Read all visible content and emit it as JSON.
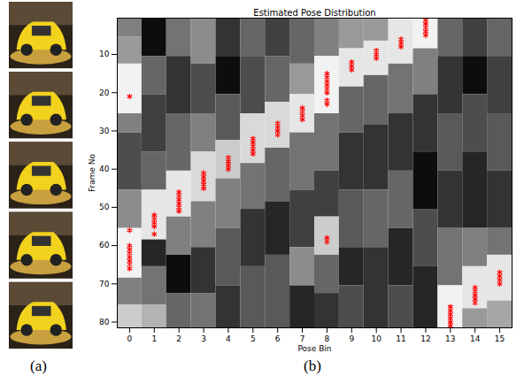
{
  "panel_a": {
    "label": "(a)",
    "images": 5
  },
  "chart_data": {
    "type": "heatmap",
    "panel_label": "(b)",
    "title": "Estimated Pose Distribution",
    "x_label": "Pose Bin",
    "y_label": "Frame No",
    "xlim": [
      -0.5,
      15.5
    ],
    "xticks": [
      0,
      1,
      2,
      3,
      4,
      5,
      6,
      7,
      8,
      9,
      10,
      11,
      12,
      13,
      14,
      15
    ],
    "ylim": [
      0.5,
      81.5
    ],
    "yticks": [
      10,
      20,
      30,
      40,
      50,
      60,
      70,
      80
    ],
    "heatmap": {
      "value_range": [
        0,
        1
      ],
      "pose_bins": [
        0,
        1,
        2,
        3,
        4,
        5,
        6,
        7,
        8,
        9,
        10,
        11,
        12,
        13,
        14,
        15
      ],
      "bands": [
        [
          [
            0.5,
            5.5,
            0.5
          ],
          [
            5.5,
            12.5,
            0.6
          ],
          [
            12.5,
            25.5,
            0.95
          ],
          [
            25.5,
            30.5,
            0.5
          ],
          [
            30.5,
            45.5,
            0.3
          ],
          [
            45.5,
            55.5,
            0.55
          ],
          [
            55.5,
            68.5,
            0.95
          ],
          [
            68.5,
            75.5,
            0.5
          ],
          [
            75.5,
            81.5,
            0.8
          ]
        ],
        [
          [
            0.5,
            10.5,
            0.05
          ],
          [
            10.5,
            20.5,
            0.4
          ],
          [
            20.5,
            35.5,
            0.25
          ],
          [
            35.5,
            45.5,
            0.4
          ],
          [
            45.5,
            58.5,
            0.9
          ],
          [
            58.5,
            65.5,
            0.15
          ],
          [
            65.5,
            75.5,
            0.45
          ],
          [
            75.5,
            81.5,
            0.7
          ]
        ],
        [
          [
            0.5,
            10.5,
            0.45
          ],
          [
            10.5,
            25.5,
            0.2
          ],
          [
            25.5,
            40.5,
            0.4
          ],
          [
            40.5,
            52.5,
            0.9
          ],
          [
            52.5,
            62.5,
            0.5
          ],
          [
            62.5,
            72.5,
            0.05
          ],
          [
            72.5,
            81.5,
            0.4
          ]
        ],
        [
          [
            0.5,
            12.5,
            0.55
          ],
          [
            12.5,
            25.5,
            0.3
          ],
          [
            25.5,
            35.5,
            0.5
          ],
          [
            35.5,
            48.5,
            0.85
          ],
          [
            48.5,
            60.5,
            0.5
          ],
          [
            60.5,
            72.5,
            0.2
          ],
          [
            72.5,
            81.5,
            0.45
          ]
        ],
        [
          [
            0.5,
            10.5,
            0.2
          ],
          [
            10.5,
            20.5,
            0.05
          ],
          [
            20.5,
            32.5,
            0.35
          ],
          [
            32.5,
            42.5,
            0.8
          ],
          [
            42.5,
            55.5,
            0.5
          ],
          [
            55.5,
            70.5,
            0.35
          ],
          [
            70.5,
            81.5,
            0.2
          ]
        ],
        [
          [
            0.5,
            10.5,
            0.4
          ],
          [
            10.5,
            25.5,
            0.3
          ],
          [
            25.5,
            38.5,
            0.85
          ],
          [
            38.5,
            50.5,
            0.45
          ],
          [
            50.5,
            65.5,
            0.2
          ],
          [
            65.5,
            81.5,
            0.35
          ]
        ],
        [
          [
            0.5,
            10.5,
            0.25
          ],
          [
            10.5,
            22.5,
            0.4
          ],
          [
            22.5,
            34.5,
            0.85
          ],
          [
            34.5,
            48.5,
            0.4
          ],
          [
            48.5,
            62.5,
            0.15
          ],
          [
            62.5,
            81.5,
            0.35
          ]
        ],
        [
          [
            0.5,
            12.5,
            0.4
          ],
          [
            12.5,
            20.5,
            0.6
          ],
          [
            20.5,
            30.5,
            0.9
          ],
          [
            30.5,
            45.5,
            0.45
          ],
          [
            45.5,
            60.5,
            0.25
          ],
          [
            60.5,
            70.5,
            0.55
          ],
          [
            70.5,
            81.5,
            0.15
          ]
        ],
        [
          [
            0.5,
            10.5,
            0.5
          ],
          [
            10.5,
            25.5,
            0.95
          ],
          [
            25.5,
            40.5,
            0.45
          ],
          [
            40.5,
            52.5,
            0.25
          ],
          [
            52.5,
            62.5,
            0.8
          ],
          [
            62.5,
            72.5,
            0.4
          ],
          [
            72.5,
            81.5,
            0.2
          ]
        ],
        [
          [
            0.5,
            8.5,
            0.6
          ],
          [
            8.5,
            18.5,
            0.9
          ],
          [
            18.5,
            30.5,
            0.4
          ],
          [
            30.5,
            45.5,
            0.2
          ],
          [
            45.5,
            60.5,
            0.35
          ],
          [
            60.5,
            70.5,
            0.15
          ],
          [
            70.5,
            81.5,
            0.3
          ]
        ],
        [
          [
            0.5,
            6.5,
            0.6
          ],
          [
            6.5,
            15.5,
            0.9
          ],
          [
            15.5,
            28.5,
            0.4
          ],
          [
            28.5,
            45.5,
            0.2
          ],
          [
            45.5,
            60.5,
            0.4
          ],
          [
            60.5,
            81.5,
            0.2
          ]
        ],
        [
          [
            0.5,
            12.5,
            0.9
          ],
          [
            12.5,
            25.5,
            0.45
          ],
          [
            25.5,
            40.5,
            0.2
          ],
          [
            40.5,
            55.5,
            0.4
          ],
          [
            55.5,
            70.5,
            0.15
          ],
          [
            70.5,
            81.5,
            0.3
          ]
        ],
        [
          [
            0.5,
            8.5,
            0.95
          ],
          [
            8.5,
            20.5,
            0.5
          ],
          [
            20.5,
            35.5,
            0.2
          ],
          [
            35.5,
            50.5,
            0.05
          ],
          [
            50.5,
            65.5,
            0.3
          ],
          [
            65.5,
            81.5,
            0.15
          ]
        ],
        [
          [
            0.5,
            10.5,
            0.4
          ],
          [
            10.5,
            25.5,
            0.2
          ],
          [
            25.5,
            40.5,
            0.35
          ],
          [
            40.5,
            55.5,
            0.2
          ],
          [
            55.5,
            70.5,
            0.45
          ],
          [
            70.5,
            81.5,
            0.95
          ]
        ],
        [
          [
            0.5,
            10.5,
            0.25
          ],
          [
            10.5,
            20.5,
            0.05
          ],
          [
            20.5,
            35.5,
            0.3
          ],
          [
            35.5,
            55.5,
            0.15
          ],
          [
            55.5,
            65.5,
            0.5
          ],
          [
            65.5,
            76.5,
            0.9
          ],
          [
            76.5,
            81.5,
            0.6
          ]
        ],
        [
          [
            0.5,
            10.5,
            0.4
          ],
          [
            10.5,
            25.5,
            0.25
          ],
          [
            25.5,
            40.5,
            0.35
          ],
          [
            40.5,
            55.5,
            0.2
          ],
          [
            55.5,
            62.5,
            0.45
          ],
          [
            62.5,
            74.5,
            0.9
          ],
          [
            74.5,
            81.5,
            0.65
          ]
        ]
      ]
    },
    "estimates": {
      "color": "#ff0000",
      "marker": "asterisk",
      "frames": [
        1,
        2,
        3,
        4,
        5,
        6,
        7,
        8,
        9,
        10,
        11,
        12,
        13,
        14,
        15,
        16,
        17,
        18,
        19,
        20,
        21,
        22,
        23,
        24,
        25,
        26,
        27,
        28,
        29,
        30,
        31,
        32,
        33,
        34,
        35,
        36,
        37,
        38,
        39,
        40,
        41,
        42,
        43,
        44,
        45,
        46,
        47,
        48,
        49,
        50,
        51,
        52,
        53,
        54,
        55,
        56,
        57,
        58,
        59,
        60,
        61,
        62,
        63,
        64,
        65,
        66,
        67,
        68,
        69,
        70,
        71,
        72,
        73,
        74,
        75,
        76,
        77,
        78,
        79,
        80,
        81
      ],
      "pose_bins": [
        12,
        12,
        12,
        12,
        12,
        11,
        11,
        11,
        10,
        10,
        10,
        9,
        9,
        9,
        8,
        8,
        8,
        8,
        8,
        8,
        0,
        8,
        8,
        7,
        7,
        7,
        7,
        6,
        6,
        6,
        6,
        5,
        5,
        5,
        5,
        5,
        4,
        4,
        4,
        4,
        3,
        3,
        3,
        3,
        3,
        2,
        2,
        2,
        2,
        2,
        2,
        1,
        1,
        1,
        1,
        0,
        1,
        8,
        8,
        0,
        0,
        0,
        0,
        0,
        0,
        0,
        15,
        15,
        15,
        15,
        14,
        14,
        14,
        14,
        14,
        13,
        13,
        13,
        13,
        13,
        13
      ]
    }
  }
}
